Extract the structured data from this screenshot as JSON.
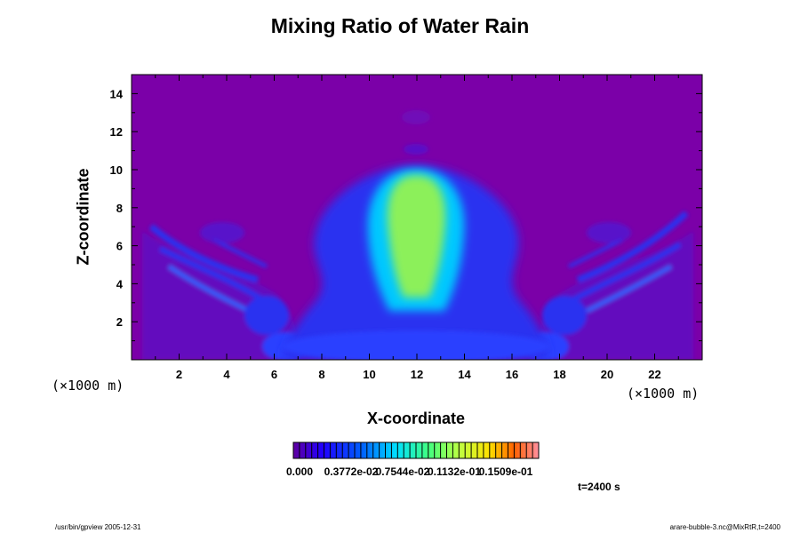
{
  "chart_data": {
    "type": "heatmap",
    "title": "Mixing Ratio of Water Rain",
    "xlabel": "X-coordinate",
    "ylabel": "Z-coordinate",
    "x_unit": "(×1000 m)",
    "y_unit": "(×1000 m)",
    "xlim": [
      0,
      24
    ],
    "ylim": [
      0,
      15
    ],
    "x_ticks": [
      "2",
      "4",
      "6",
      "8",
      "10",
      "12",
      "14",
      "16",
      "18",
      "20",
      "22"
    ],
    "y_ticks": [
      "2",
      "4",
      "6",
      "8",
      "10",
      "12",
      "14"
    ],
    "colorbar": {
      "labels": [
        "0.000",
        "0.3772e-02",
        "0.7544e-02",
        "0.1132e-01",
        "0.1509e-01"
      ],
      "colormap": "rainbow"
    },
    "time_label": "t=2400 s",
    "features": [
      {
        "name": "central core",
        "x": 12,
        "z_range": [
          2.5,
          10
        ],
        "level": "high"
      },
      {
        "name": "left wing",
        "x_range": [
          0.5,
          7
        ],
        "z_range": [
          2.5,
          7.5
        ],
        "level": "low"
      },
      {
        "name": "right wing",
        "x_range": [
          17,
          23.5
        ],
        "z_range": [
          2.5,
          7.5
        ],
        "level": "low"
      }
    ]
  },
  "footer": {
    "left": "/usr/bin/gpview 2005-12-31",
    "right": "arare-bubble-3.nc@MixRtR,t=2400"
  },
  "colors": {
    "background_field": "#7b00a8",
    "low": "#2a30f0",
    "mid": "#00c8ff",
    "high": "#8cf05a"
  }
}
